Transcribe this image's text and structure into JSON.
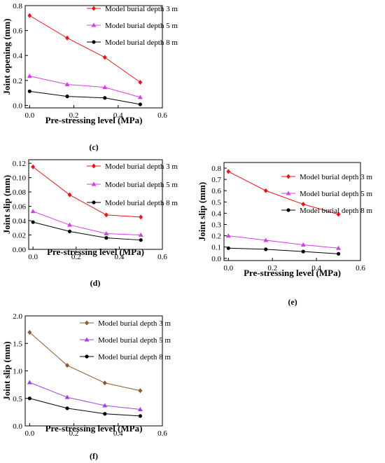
{
  "chart_data": [
    {
      "id": "c",
      "panel_label": "(c)",
      "type": "line",
      "xlabel": "Pre-stressing level (MPa)",
      "ylabel": "Joint opening (mm)",
      "xlim": [
        -0.02,
        0.6
      ],
      "ylim": [
        -0.02,
        0.8
      ],
      "xticks": [
        "0.0",
        "0.2",
        "0.4",
        "0.6"
      ],
      "yticks": [
        "0.0",
        "0.2",
        "0.4",
        "0.6",
        "0.8"
      ],
      "x": [
        0.0,
        0.17,
        0.34,
        0.5
      ],
      "series": [
        {
          "name": "Model burial depth 3 m",
          "color": "#e8151b",
          "marker": "diamond",
          "values": [
            0.72,
            0.54,
            0.385,
            0.185
          ]
        },
        {
          "name": "Model burial depth 5 m",
          "color": "#d43ee8",
          "marker": "triangle",
          "values": [
            0.235,
            0.168,
            0.145,
            0.065
          ]
        },
        {
          "name": "Model burial depth 8 m",
          "color": "#000000",
          "marker": "circle",
          "values": [
            0.113,
            0.072,
            0.06,
            0.008
          ]
        }
      ],
      "legend": "top-right",
      "grid": false
    },
    {
      "id": "d",
      "panel_label": "(d)",
      "type": "line",
      "xlabel": "Pre-stressing level (MPa)",
      "ylabel": "Joint slip (mm)",
      "xlim": [
        -0.02,
        0.6
      ],
      "ylim": [
        0.0,
        0.125
      ],
      "xticks": [
        "0.0",
        "0.2",
        "0.4",
        "0.6"
      ],
      "yticks": [
        "0.00",
        "0.02",
        "0.04",
        "0.06",
        "0.08",
        "0.10",
        "0.12"
      ],
      "x": [
        0.0,
        0.17,
        0.34,
        0.5
      ],
      "series": [
        {
          "name": "Model burial depth 3 m",
          "color": "#e8151b",
          "marker": "diamond",
          "values": [
            0.115,
            0.076,
            0.048,
            0.045
          ]
        },
        {
          "name": "Model burial depth 5 m",
          "color": "#d43ee8",
          "marker": "triangle",
          "values": [
            0.053,
            0.034,
            0.022,
            0.02
          ]
        },
        {
          "name": "Model burial depth 8 m",
          "color": "#000000",
          "marker": "circle",
          "values": [
            0.038,
            0.025,
            0.016,
            0.013
          ]
        }
      ],
      "legend": "right",
      "grid": false
    },
    {
      "id": "e",
      "panel_label": "(e)",
      "type": "line",
      "xlabel": "Pre-stressing level (MPa)",
      "ylabel": "Joint slip (mm)",
      "xlim": [
        -0.02,
        0.6
      ],
      "ylim": [
        -0.02,
        0.85
      ],
      "xticks": [
        "0.0",
        "0.2",
        "0.4",
        "0.6"
      ],
      "yticks": [
        "0.0",
        "0.1",
        "0.2",
        "0.3",
        "0.4",
        "0.5",
        "0.6",
        "0.7",
        "0.8"
      ],
      "x": [
        0.0,
        0.17,
        0.34,
        0.5
      ],
      "series": [
        {
          "name": "Model burial depth 3 m",
          "color": "#e8151b",
          "marker": "diamond",
          "values": [
            0.77,
            0.6,
            0.48,
            0.39
          ]
        },
        {
          "name": "Model burial depth 5 m",
          "color": "#d43ee8",
          "marker": "triangle",
          "values": [
            0.2,
            0.16,
            0.12,
            0.09
          ]
        },
        {
          "name": "Model burial depth 8 m",
          "color": "#000000",
          "marker": "circle",
          "values": [
            0.09,
            0.08,
            0.06,
            0.04
          ]
        }
      ],
      "legend": "top-right",
      "grid": false
    },
    {
      "id": "f",
      "panel_label": "(f)",
      "type": "line",
      "xlabel": "Pre-stressing level (MPa)",
      "ylabel": "Joint slip (mm)",
      "xlim": [
        -0.02,
        0.6
      ],
      "ylim": [
        0.0,
        2.0
      ],
      "xticks": [
        "0.0",
        "0.2",
        "0.4",
        "0.6"
      ],
      "yticks": [
        "0.0",
        "0.5",
        "1.0",
        "1.5",
        "2.0"
      ],
      "x": [
        0.0,
        0.17,
        0.34,
        0.5
      ],
      "series": [
        {
          "name": "Model burial depth 3 m",
          "color": "#8b5a2b",
          "marker": "diamond",
          "values": [
            1.7,
            1.1,
            0.78,
            0.64
          ]
        },
        {
          "name": "Model burial depth 5 m",
          "color": "#a040e0",
          "marker": "triangle",
          "values": [
            0.79,
            0.52,
            0.37,
            0.3
          ]
        },
        {
          "name": "Model burial depth 8 m",
          "color": "#000000",
          "marker": "circle",
          "values": [
            0.5,
            0.32,
            0.22,
            0.18
          ]
        }
      ],
      "legend": "top-right",
      "grid": false
    }
  ]
}
